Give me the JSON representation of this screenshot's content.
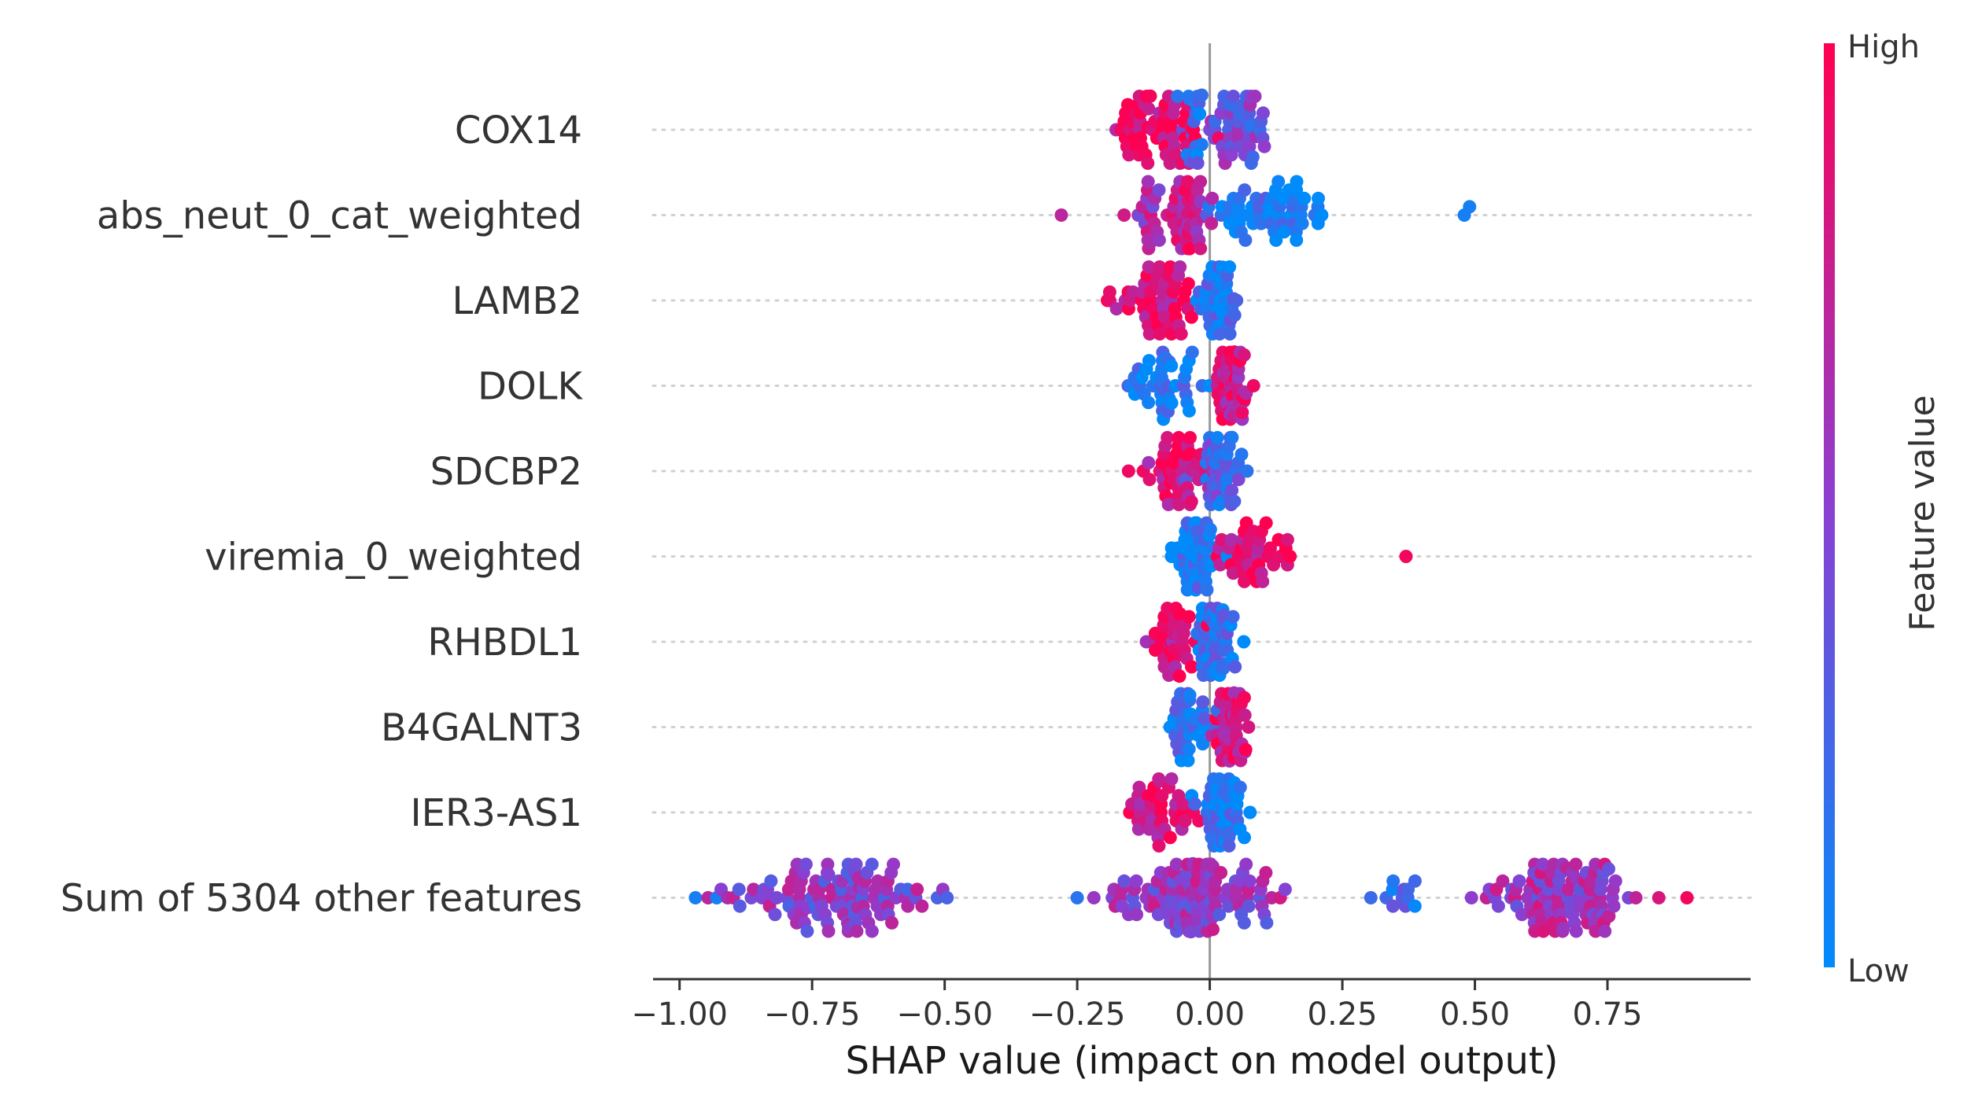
{
  "chart_data": {
    "type": "scatter",
    "subtype": "shap-beeswarm",
    "xlabel": "SHAP value (impact on model output)",
    "xlim": [
      -1.05,
      1.02
    ],
    "xticks": [
      -1.0,
      -0.75,
      -0.5,
      -0.25,
      0.0,
      0.25,
      0.5,
      0.75
    ],
    "xtick_labels": [
      "−1.00",
      "−0.75",
      "−0.50",
      "−0.25",
      "0.00",
      "0.25",
      "0.50",
      "0.75"
    ],
    "colorbar": {
      "title": "Feature value",
      "high_label": "High",
      "low_label": "Low",
      "high_color": "#ff0051",
      "low_color": "#008bfb"
    },
    "features": [
      {
        "name": "COX14",
        "clusters": [
          {
            "center": -0.1,
            "spread": 0.07,
            "count": 60,
            "color": 0.9
          },
          {
            "center": 0.06,
            "spread": 0.05,
            "count": 45,
            "color": 0.4
          },
          {
            "center": -0.03,
            "spread": 0.02,
            "count": 20,
            "color": 0.15
          }
        ]
      },
      {
        "name": "abs_neut_0_cat_weighted",
        "clusters": [
          {
            "center": -0.04,
            "spread": 0.03,
            "count": 40,
            "color": 0.75
          },
          {
            "center": -0.12,
            "spread": 0.04,
            "count": 20,
            "color": 0.65
          },
          {
            "center": 0.12,
            "spread": 0.1,
            "count": 55,
            "color": 0.08
          }
        ],
        "points": [
          {
            "x": -0.28,
            "color": 0.7
          },
          {
            "x": 0.48,
            "color": 0.08
          },
          {
            "x": 0.49,
            "color": 0.08
          }
        ]
      },
      {
        "name": "LAMB2",
        "clusters": [
          {
            "center": -0.1,
            "spread": 0.06,
            "count": 50,
            "color": 0.85
          },
          {
            "center": 0.02,
            "spread": 0.03,
            "count": 40,
            "color": 0.15
          }
        ]
      },
      {
        "name": "DOLK",
        "clusters": [
          {
            "center": -0.08,
            "spread": 0.05,
            "count": 45,
            "color": 0.12
          },
          {
            "center": 0.04,
            "spread": 0.03,
            "count": 55,
            "color": 0.8
          }
        ]
      },
      {
        "name": "SDCBP2",
        "clusters": [
          {
            "center": -0.06,
            "spread": 0.05,
            "count": 45,
            "color": 0.85
          },
          {
            "center": 0.02,
            "spread": 0.03,
            "count": 50,
            "color": 0.25
          }
        ]
      },
      {
        "name": "viremia_0_weighted",
        "clusters": [
          {
            "center": -0.03,
            "spread": 0.03,
            "count": 55,
            "color": 0.1
          },
          {
            "center": 0.08,
            "spread": 0.06,
            "count": 40,
            "color": 0.85
          }
        ],
        "points": [
          {
            "x": 0.37,
            "color": 0.95
          }
        ]
      },
      {
        "name": "RHBDL1",
        "clusters": [
          {
            "center": -0.07,
            "spread": 0.04,
            "count": 40,
            "color": 0.85
          },
          {
            "center": 0.01,
            "spread": 0.03,
            "count": 50,
            "color": 0.15
          }
        ]
      },
      {
        "name": "B4GALNT3",
        "clusters": [
          {
            "center": -0.04,
            "spread": 0.03,
            "count": 40,
            "color": 0.15
          },
          {
            "center": 0.04,
            "spread": 0.03,
            "count": 45,
            "color": 0.85
          }
        ]
      },
      {
        "name": "IER3-AS1",
        "clusters": [
          {
            "center": -0.09,
            "spread": 0.04,
            "count": 40,
            "color": 0.85
          },
          {
            "center": 0.02,
            "spread": 0.03,
            "count": 55,
            "color": 0.1
          }
        ]
      },
      {
        "name": "Sum of 5304 other features",
        "clusters": [
          {
            "center": -0.7,
            "spread": 0.15,
            "count": 110,
            "color": 0.5
          },
          {
            "center": -0.02,
            "spread": 0.13,
            "count": 120,
            "color": 0.55
          },
          {
            "center": 0.67,
            "spread": 0.12,
            "count": 100,
            "color": 0.6
          },
          {
            "center": 0.35,
            "spread": 0.04,
            "count": 12,
            "color": 0.2
          }
        ],
        "points": [
          {
            "x": -0.97,
            "color": 0.08
          },
          {
            "x": -0.93,
            "color": 0.08
          },
          {
            "x": -0.25,
            "color": 0.15
          },
          {
            "x": 0.9,
            "color": 0.95
          }
        ]
      }
    ]
  }
}
